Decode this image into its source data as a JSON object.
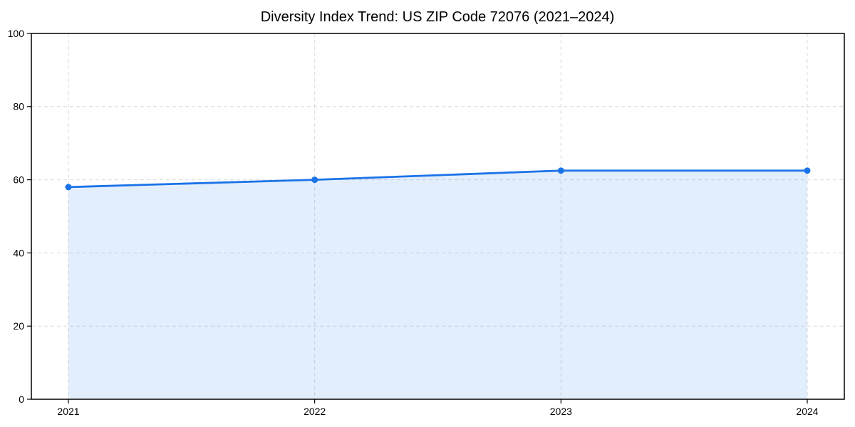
{
  "figure": {
    "background": "#ffffff"
  },
  "chart_data": {
    "type": "area",
    "title": "Diversity Index Trend: US ZIP Code 72076 (2021–2024)",
    "x": [
      "2021",
      "2022",
      "2023",
      "2024"
    ],
    "series": [
      {
        "name": "Diversity Index",
        "values": [
          58,
          60,
          62.5,
          62.5
        ]
      }
    ],
    "xlabel": "",
    "ylabel": "",
    "ylim": [
      0,
      100
    ],
    "yticks": [
      0,
      20,
      40,
      60,
      80,
      100
    ],
    "grid": true,
    "grid_style": "dashed",
    "legend": "none",
    "marker": "circle",
    "colors": {
      "line": "#1a73e8",
      "marker": "#1a73e8",
      "fill": "#1a73e8",
      "fill_opacity": 0.12,
      "grid": "#d9d9d9",
      "spine": "#000000",
      "text": "#000000",
      "background": "#ffffff"
    }
  }
}
